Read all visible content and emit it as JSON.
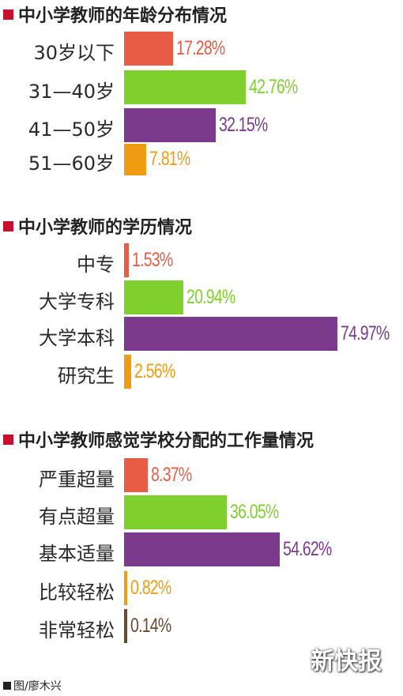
{
  "colors": {
    "red": "#e85c45",
    "green": "#7fd02c",
    "purple": "#7b3a8b",
    "orange": "#f09c12",
    "brown": "#6b4a2e",
    "title_square": "#c8102e"
  },
  "credit": "图/廖木兴",
  "logo_text": "新快报",
  "chart_data": [
    {
      "type": "bar",
      "title": "中小学教师的年龄分布情况",
      "unit": "%",
      "categories": [
        "30岁以下",
        "31—40岁",
        "41—50岁",
        "51—60岁"
      ],
      "values": [
        17.28,
        42.76,
        32.15,
        7.81
      ],
      "labels": [
        "17.28%",
        "42.76%",
        "32.15%",
        "7.81%"
      ],
      "colors": [
        "#e85c45",
        "#7fd02c",
        "#7b3a8b",
        "#f09c12"
      ]
    },
    {
      "type": "bar",
      "title": "中小学教师的学历情况",
      "unit": "%",
      "categories": [
        "中专",
        "大学专科",
        "大学本科",
        "研究生"
      ],
      "values": [
        1.53,
        20.94,
        74.97,
        2.56
      ],
      "labels": [
        "1.53%",
        "20.94%",
        "74.97%",
        "2.56%"
      ],
      "colors": [
        "#e85c45",
        "#7fd02c",
        "#7b3a8b",
        "#f09c12"
      ]
    },
    {
      "type": "bar",
      "title": "中小学教师感觉学校分配的工作量情况",
      "unit": "%",
      "categories": [
        "严重超量",
        "有点超量",
        "基本适量",
        "比较轻松",
        "非常轻松"
      ],
      "values": [
        8.37,
        36.05,
        54.62,
        0.82,
        0.14
      ],
      "labels": [
        "8.37%",
        "36.05%",
        "54.62%",
        "0.82%",
        "0.14%"
      ],
      "colors": [
        "#e85c45",
        "#7fd02c",
        "#7b3a8b",
        "#f09c12",
        "#6b4a2e"
      ]
    }
  ]
}
